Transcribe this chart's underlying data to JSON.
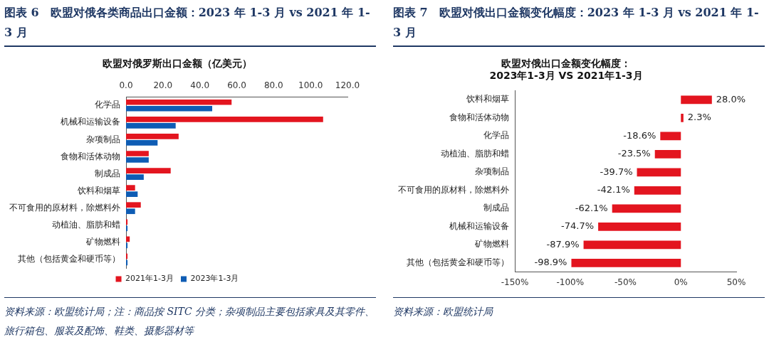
{
  "chart_data": [
    {
      "type": "bar",
      "orientation": "horizontal",
      "title": "图表 6　欧盟对俄各类商品出口金额：2023 年 1-3 月 vs 2021 年 1-3 月",
      "subtitle": "欧盟对俄罗斯出口金额（亿美元）",
      "categories": [
        "化学品",
        "机械和运输设备",
        "杂项制品",
        "食物和活体动物",
        "制成品",
        "饮料和烟草",
        "不可食用的原材料，除燃料外",
        "动植油、脂肪和蜡",
        "矿物燃料",
        "其他（包括黄金和硬币等）"
      ],
      "series": [
        {
          "name": "2021年1-3月",
          "color": "#e3151f",
          "values": [
            57.2,
            106.8,
            28.5,
            12.3,
            24.2,
            4.9,
            8.0,
            0.8,
            2.0,
            0.8
          ]
        },
        {
          "name": "2023年1-3月",
          "color": "#0e5cb4",
          "values": [
            46.7,
            26.9,
            17.1,
            12.3,
            9.6,
            6.3,
            4.9,
            0.8,
            0.8,
            0.8
          ]
        }
      ],
      "xlim": [
        0,
        120
      ],
      "xticks": [
        {
          "value": 0,
          "label": "0.0"
        },
        {
          "value": 20,
          "label": "20.0"
        },
        {
          "value": 40,
          "label": "40.0"
        },
        {
          "value": 60,
          "label": "60.0"
        },
        {
          "value": 80,
          "label": "80.0"
        },
        {
          "value": 100,
          "label": "100.0"
        },
        {
          "value": 120,
          "label": "120.0"
        }
      ],
      "grid": false,
      "legend": "bottom",
      "annotations": [
        "资料来源：欧盟统计局；注：商品按 SITC 分类；杂项制品主要包括家具及其零件、旅行箱包、服装及配饰、鞋类、摄影器材等"
      ]
    },
    {
      "type": "bar",
      "orientation": "horizontal",
      "title": "图表 7　欧盟对俄出口金额变化幅度：2023 年 1-3 月 vs 2021 年 1-3 月",
      "subtitle": "欧盟对俄出口金额变化幅度：\n2023年1-3月 VS 2021年1-3月",
      "categories": [
        "饮料和烟草",
        "食物和活体动物",
        "化学品",
        "动植油、脂肪和蜡",
        "杂项制品",
        "不可食用的原材料，除燃料外",
        "制成品",
        "机械和运输设备",
        "矿物燃料",
        "其他（包括黄金和硬币等）"
      ],
      "series": [
        {
          "color": "#e3151f",
          "values": [
            28.0,
            2.3,
            -18.6,
            -23.5,
            -39.7,
            -42.1,
            -62.1,
            -74.7,
            -87.9,
            -98.9
          ],
          "value_labels": [
            "28.0%",
            "2.3%",
            "-18.6%",
            "-23.5%",
            "-39.7%",
            "-42.1%",
            "-62.1%",
            "-74.7%",
            "-87.9%",
            "-98.9%"
          ]
        }
      ],
      "xlim": [
        -150,
        50
      ],
      "xticks": [
        {
          "value": -150,
          "label": "-150%"
        },
        {
          "value": -100,
          "label": "-100%"
        },
        {
          "value": -50,
          "label": "-50%"
        },
        {
          "value": 0,
          "label": "0%"
        },
        {
          "value": 50,
          "label": "50%"
        }
      ],
      "grid": false,
      "legend": false,
      "annotations": [
        "资料来源：欧盟统计局"
      ]
    }
  ]
}
